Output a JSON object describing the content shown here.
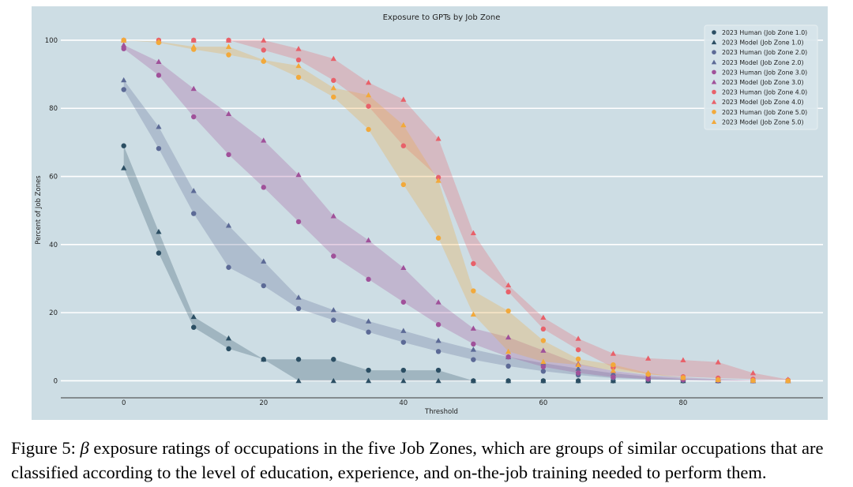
{
  "chart_data": {
    "type": "line",
    "title": "Exposure to GPTs by Job Zone",
    "xlabel": "Threshold",
    "ylabel": "Percent of Job Zones",
    "xlim": [
      -9,
      100
    ],
    "ylim": [
      -5,
      103
    ],
    "x_ticks": [
      0,
      20,
      40,
      60,
      80
    ],
    "y_ticks": [
      0,
      20,
      40,
      60,
      80,
      100
    ],
    "grid": "horizontal",
    "legend_position": "top-right",
    "background": "#cddde4",
    "x": [
      0,
      5,
      10,
      15,
      20,
      25,
      30,
      35,
      40,
      45,
      50,
      55,
      60,
      65,
      70,
      75,
      80,
      85,
      90,
      95
    ],
    "zones": [
      {
        "name": "Job Zone 1.0",
        "color": "#2b4e63",
        "human_label": "2023 Human (Job Zone 1.0)",
        "model_label": "2023 Model (Job Zone 1.0)",
        "human": [
          69,
          37.5,
          15.7,
          9.4,
          6.3,
          6.3,
          6.3,
          3.1,
          3.1,
          3.1,
          0,
          0,
          0,
          0,
          0,
          0,
          0,
          0,
          0,
          0
        ],
        "model": [
          62.5,
          43.8,
          18.8,
          12.5,
          6.3,
          0,
          0,
          0,
          0,
          0,
          0,
          0,
          0,
          0,
          0,
          0,
          0,
          0,
          0,
          0
        ]
      },
      {
        "name": "Job Zone 2.0",
        "color": "#5c6a96",
        "human_label": "2023 Human (Job Zone 2.0)",
        "model_label": "2023 Model (Job Zone 2.0)",
        "human": [
          85.5,
          68.2,
          49.1,
          33.3,
          27.9,
          21.2,
          17.8,
          14.3,
          11.3,
          8.6,
          6.2,
          4.3,
          2.8,
          1.7,
          0.8,
          0.4,
          0.2,
          0,
          0,
          0
        ],
        "model": [
          88.3,
          74.6,
          55.8,
          45.6,
          35.1,
          24.5,
          20.8,
          17.5,
          14.7,
          11.8,
          9.2,
          7.0,
          5.2,
          3.6,
          2.2,
          1.2,
          0.5,
          0.2,
          0,
          0
        ]
      },
      {
        "name": "Job Zone 3.0",
        "color": "#a0519a",
        "human_label": "2023 Human (Job Zone 3.0)",
        "model_label": "2023 Model (Job Zone 3.0)",
        "human": [
          97.5,
          89.7,
          77.5,
          66.4,
          56.8,
          46.7,
          36.6,
          29.8,
          23.1,
          16.5,
          10.8,
          7.0,
          4.1,
          2.3,
          1.1,
          0.5,
          0.3,
          0.1,
          0,
          0
        ],
        "model": [
          98.6,
          93.7,
          85.8,
          78.4,
          70.6,
          60.5,
          48.4,
          41.3,
          33.2,
          23.1,
          15.4,
          12.8,
          8.9,
          5.0,
          2.9,
          1.7,
          1.0,
          0.5,
          0.2,
          0
        ]
      },
      {
        "name": "Job Zone 4.0",
        "color": "#e8616a",
        "human_label": "2023 Human (Job Zone 4.0)",
        "model_label": "2023 Model (Job Zone 4.0)",
        "human": [
          100,
          100,
          100,
          100,
          97.1,
          94.2,
          88.2,
          80.6,
          69.0,
          59.7,
          34.4,
          26.1,
          15.2,
          9.1,
          3.9,
          1.9,
          1.2,
          0.8,
          0.5,
          0.2
        ],
        "model": [
          100,
          100,
          100,
          100,
          100,
          97.5,
          94.6,
          87.6,
          82.6,
          71.1,
          43.4,
          28.1,
          18.6,
          12.4,
          8.0,
          6.6,
          6.1,
          5.5,
          2.3,
          0.4
        ]
      },
      {
        "name": "Job Zone 5.0",
        "color": "#f2a93b",
        "human_label": "2023 Human (Job Zone 5.0)",
        "model_label": "2023 Model (Job Zone 5.0)",
        "human": [
          100,
          99.3,
          97.3,
          95.7,
          93.8,
          89.1,
          83.3,
          73.8,
          57.6,
          41.9,
          26.4,
          20.5,
          11.8,
          6.4,
          4.7,
          1.9,
          0.9,
          0.3,
          0.1,
          0
        ],
        "model": [
          100,
          99.6,
          98.1,
          98.1,
          94.2,
          92.5,
          86.0,
          83.9,
          75.1,
          58.8,
          19.5,
          8.6,
          5.6,
          4.7,
          3.0,
          2.3,
          0.9,
          0.3,
          0.1,
          0
        ]
      }
    ]
  },
  "caption": {
    "prefix": "Figure 5: ",
    "symbol": "β",
    "text": " exposure ratings of occupations in the five Job Zones, which are groups of similar occupations that are classified according to the level of education, experience, and on-the-job training needed to perform them."
  }
}
